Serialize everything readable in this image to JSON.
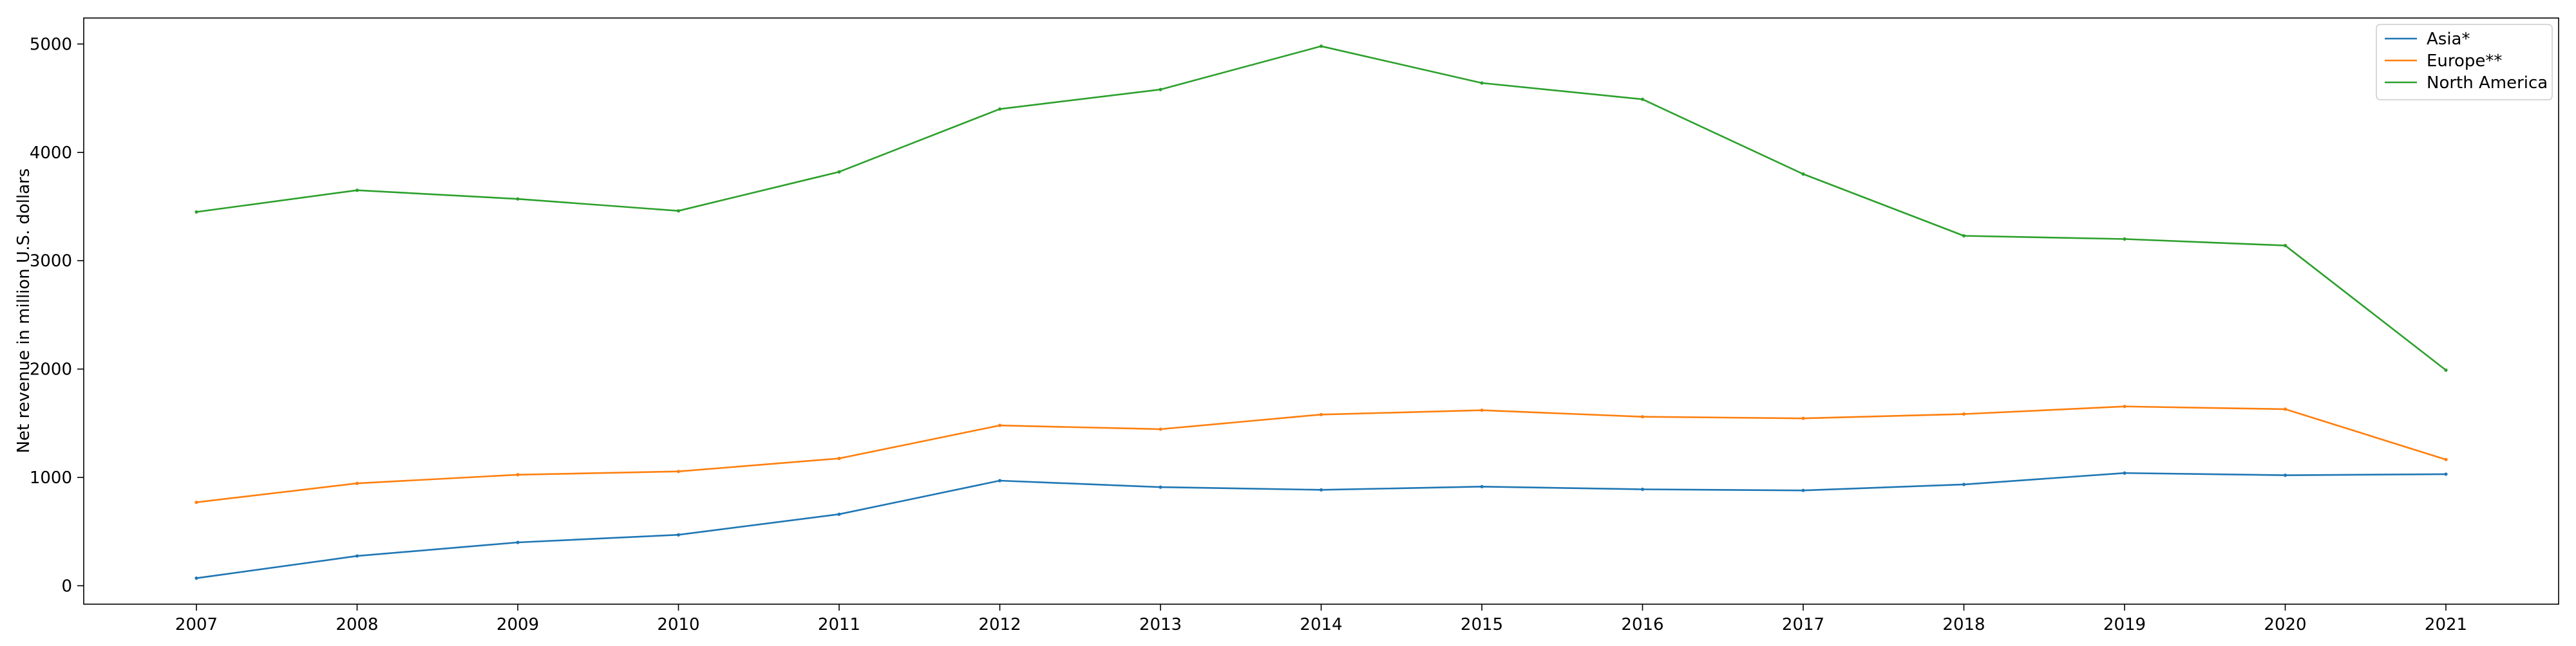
{
  "chart_data": {
    "type": "line",
    "title": "",
    "xlabel": "",
    "ylabel": "Net revenue in million U.S. dollars",
    "x": [
      "2007",
      "2008",
      "2009",
      "2010",
      "2011",
      "2012",
      "2013",
      "2014",
      "2015",
      "2016",
      "2017",
      "2018",
      "2019",
      "2020",
      "2021"
    ],
    "yticks": [
      0,
      1000,
      2000,
      3000,
      4000,
      5000
    ],
    "ylim": [
      -170,
      5240
    ],
    "grid": false,
    "legend_position": "top-right",
    "series": [
      {
        "name": "Asia*",
        "color": "#1f77b4",
        "values": [
          70,
          275,
          400,
          470,
          660,
          970,
          910,
          885,
          915,
          890,
          880,
          935,
          1040,
          1020,
          1030
        ]
      },
      {
        "name": "Europe**",
        "color": "#ff7f0e",
        "values": [
          770,
          945,
          1025,
          1055,
          1175,
          1480,
          1445,
          1580,
          1620,
          1560,
          1545,
          1585,
          1655,
          1630,
          1165
        ]
      },
      {
        "name": "North America",
        "color": "#2ca02c",
        "values": [
          3450,
          3650,
          3570,
          3460,
          3820,
          4400,
          4580,
          4980,
          4640,
          4490,
          3800,
          3230,
          3200,
          3140,
          1990
        ]
      }
    ]
  }
}
